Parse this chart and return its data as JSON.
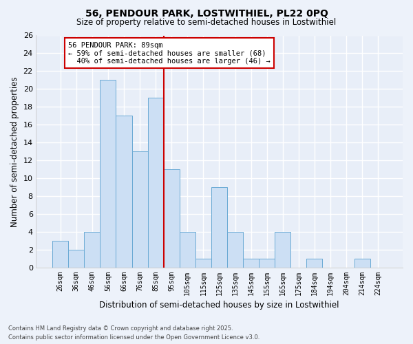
{
  "title": "56, PENDOUR PARK, LOSTWITHIEL, PL22 0PQ",
  "subtitle": "Size of property relative to semi-detached houses in Lostwithiel",
  "xlabel": "Distribution of semi-detached houses by size in Lostwithiel",
  "ylabel": "Number of semi-detached properties",
  "categories": [
    "26sqm",
    "36sqm",
    "46sqm",
    "56sqm",
    "66sqm",
    "76sqm",
    "85sqm",
    "95sqm",
    "105sqm",
    "115sqm",
    "125sqm",
    "135sqm",
    "145sqm",
    "155sqm",
    "165sqm",
    "175sqm",
    "184sqm",
    "194sqm",
    "204sqm",
    "214sqm",
    "224sqm"
  ],
  "values": [
    3,
    2,
    4,
    21,
    17,
    13,
    19,
    11,
    4,
    1,
    9,
    4,
    1,
    1,
    4,
    0,
    1,
    0,
    0,
    1,
    0
  ],
  "bar_color": "#ccdff4",
  "bar_edge_color": "#6aaad4",
  "pct_smaller": 59,
  "n_smaller": 68,
  "pct_larger": 40,
  "n_larger": 46,
  "vline_x_index": 6.5,
  "vline_color": "#cc0000",
  "ylim": [
    0,
    26
  ],
  "yticks": [
    0,
    2,
    4,
    6,
    8,
    10,
    12,
    14,
    16,
    18,
    20,
    22,
    24,
    26
  ],
  "bg_color": "#edf2fa",
  "plot_bg_color": "#e8eef8",
  "grid_color": "#ffffff",
  "annotation_box_color": "#ffffff",
  "annotation_box_edge": "#cc0000",
  "footer1": "Contains HM Land Registry data © Crown copyright and database right 2025.",
  "footer2": "Contains public sector information licensed under the Open Government Licence v3.0."
}
